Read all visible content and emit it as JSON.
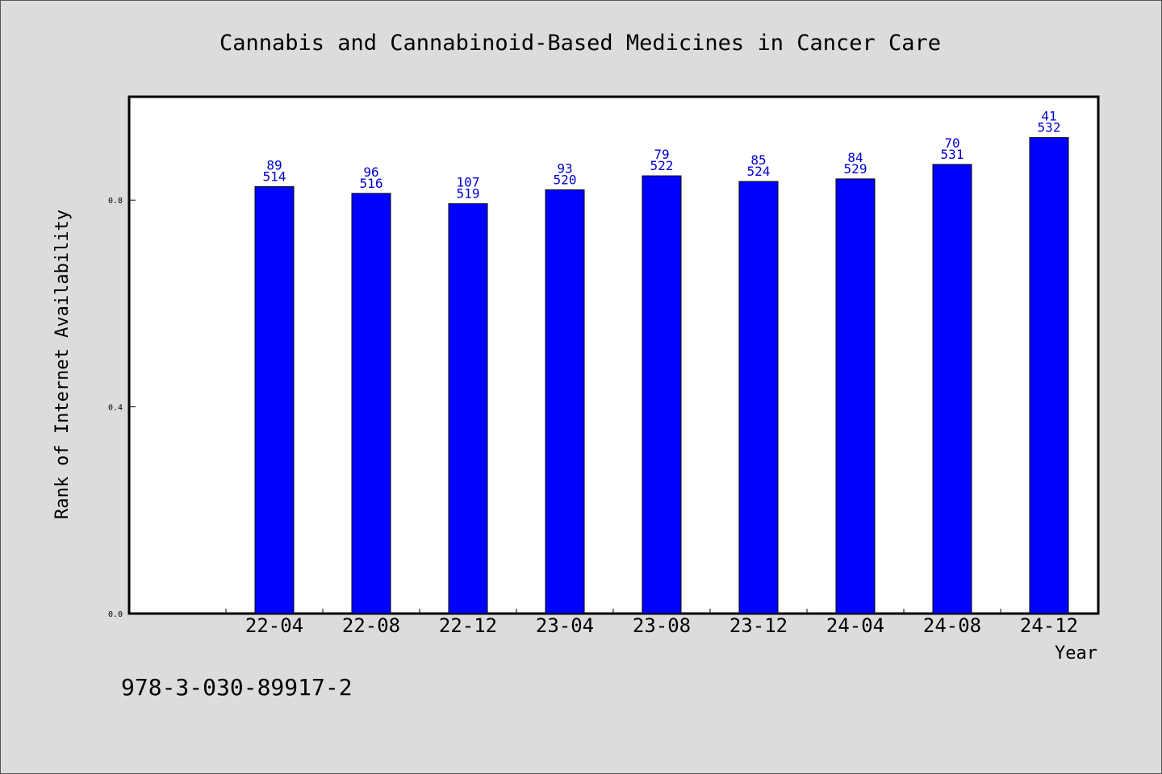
{
  "chart_data": {
    "type": "bar",
    "title": "Cannabis and Cannabinoid-Based Medicines in Cancer Care",
    "xlabel": "Year",
    "ylabel": "Rank of Internet Availability",
    "categories": [
      "22-04",
      "22-08",
      "22-12",
      "23-04",
      "23-08",
      "23-12",
      "24-04",
      "24-08",
      "24-12"
    ],
    "values": [
      0.826,
      0.813,
      0.793,
      0.82,
      0.847,
      0.836,
      0.841,
      0.869,
      0.921
    ],
    "labels_top": [
      "89",
      "96",
      "107",
      "93",
      "79",
      "85",
      "84",
      "70",
      "41"
    ],
    "labels_bottom": [
      "514",
      "516",
      "519",
      "520",
      "522",
      "524",
      "529",
      "531",
      "532"
    ],
    "ylim": [
      0,
      1.0
    ],
    "yticks": [
      "0.0",
      "0.4",
      "0.8"
    ],
    "bar_color": "#0000ff",
    "label_color": "#0000cc",
    "grid": false
  },
  "footer": {
    "isbn": "978-3-030-89917-2"
  }
}
